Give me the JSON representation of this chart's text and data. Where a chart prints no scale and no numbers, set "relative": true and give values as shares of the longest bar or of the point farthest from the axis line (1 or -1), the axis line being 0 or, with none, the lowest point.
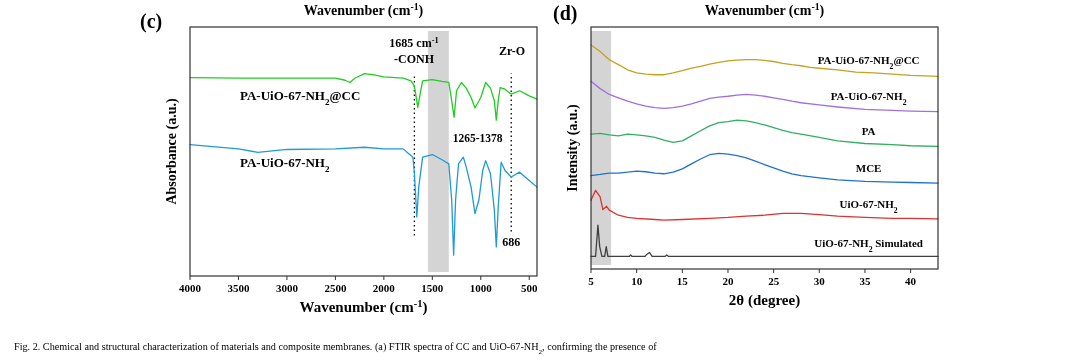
{
  "chart_data": [
    {
      "type": "line",
      "relative": true,
      "title": "Wavenumber (cm$^{-1}$)",
      "xlabel": "Wavenumber (cm$^{-1}$)",
      "ylabel": "Absorbance (a.u.)",
      "grid": false,
      "xlim": [
        4000,
        420
      ],
      "xticks": [
        4000,
        3500,
        3000,
        2500,
        2000,
        1500,
        1000,
        500
      ],
      "ref_lines": [
        {
          "axis": "x",
          "value": 1685,
          "line_style": "dotted",
          "color": "#000000"
        },
        {
          "axis": "x",
          "value": 686,
          "line_style": "dotted",
          "color": "#000000",
          "label": "686"
        }
      ],
      "bands": [
        {
          "axis": "x",
          "from": 1545,
          "to": 1330,
          "color": "#d4d4d4",
          "label": "1265-1378"
        }
      ],
      "annotations": [
        "(c)",
        "1685 cm$^{-1}$",
        "-CONH",
        "Zr-O",
        "Fig. 2. Chemical and structural characterization of materials and composite membranes. (a) FTIR spectra of CC and UiO-67-NH$_{2}$, confirming the presence of"
      ],
      "series": [
        {
          "name": "PA-UiO-67-NH$_{2}$@CC",
          "color": "#22cc22",
          "x": [
            4000,
            3500,
            3000,
            2500,
            2400,
            2350,
            2300,
            2200,
            2100,
            2000,
            1800,
            1720,
            1685,
            1650,
            1620,
            1600,
            1500,
            1400,
            1330,
            1300,
            1275,
            1250,
            1200,
            1150,
            1100,
            1060,
            1000,
            950,
            900,
            860,
            840,
            820,
            800,
            750,
            686,
            600,
            500,
            420
          ],
          "values": [
            0.98,
            0.977,
            0.977,
            0.977,
            0.967,
            0.956,
            0.977,
            1.0,
            0.993,
            0.984,
            0.977,
            0.964,
            0.939,
            0.833,
            0.915,
            0.964,
            0.97,
            0.961,
            0.956,
            0.866,
            0.784,
            0.915,
            0.956,
            0.928,
            0.882,
            0.83,
            0.882,
            0.956,
            0.928,
            0.866,
            0.77,
            0.866,
            0.931,
            0.923,
            0.898,
            0.915,
            0.89,
            0.874
          ]
        },
        {
          "name": "PA-UiO-67-NH$_{2}$",
          "color": "#1e9ad6",
          "x": [
            4000,
            3500,
            3300,
            3000,
            2500,
            2200,
            2000,
            1800,
            1740,
            1700,
            1685,
            1660,
            1640,
            1600,
            1500,
            1400,
            1330,
            1300,
            1280,
            1260,
            1230,
            1180,
            1150,
            1100,
            1060,
            1020,
            980,
            950,
            900,
            860,
            840,
            820,
            790,
            750,
            686,
            600,
            500,
            420
          ],
          "values": [
            0.649,
            0.628,
            0.611,
            0.625,
            0.628,
            0.636,
            0.628,
            0.628,
            0.603,
            0.587,
            0.505,
            0.292,
            0.439,
            0.587,
            0.6,
            0.574,
            0.554,
            0.374,
            0.103,
            0.374,
            0.554,
            0.587,
            0.538,
            0.439,
            0.308,
            0.374,
            0.521,
            0.57,
            0.505,
            0.325,
            0.144,
            0.341,
            0.562,
            0.521,
            0.489,
            0.513,
            0.472,
            0.439
          ]
        }
      ]
    },
    {
      "type": "line",
      "relative": true,
      "title": "Wavenumber (cm$^{-1}$)",
      "xlabel": "2θ (degree)",
      "ylabel": "Intensity (a.u.)",
      "grid": false,
      "xlim": [
        5,
        43
      ],
      "xticks": [
        5,
        10,
        15,
        20,
        25,
        30,
        35,
        40
      ],
      "bands": [
        {
          "axis": "x",
          "from": 5,
          "to": 7.2,
          "color": "#d4d4d4"
        }
      ],
      "annotations": [
        "(d)"
      ],
      "series": [
        {
          "name": "PA-UiO-67-NH$_{2}$@CC",
          "color": "#c8a020",
          "x": [
            5,
            6,
            7,
            8,
            9,
            10,
            11,
            12,
            13,
            14,
            15,
            16,
            17,
            18,
            19,
            20,
            21,
            22,
            23,
            24,
            25,
            26,
            27,
            28,
            29,
            30,
            32,
            34,
            36,
            38,
            40,
            43
          ],
          "values": [
            1,
            0.971,
            0.934,
            0.912,
            0.889,
            0.875,
            0.87,
            0.867,
            0.867,
            0.875,
            0.885,
            0.896,
            0.904,
            0.914,
            0.922,
            0.929,
            0.932,
            0.934,
            0.934,
            0.931,
            0.926,
            0.918,
            0.912,
            0.907,
            0.9,
            0.896,
            0.889,
            0.879,
            0.875,
            0.87,
            0.864,
            0.86
          ]
        },
        {
          "name": "PA-UiO-67-NH$_{2}$",
          "color": "#a070e0",
          "x": [
            5,
            6,
            7,
            8,
            9,
            10,
            11,
            12,
            13,
            14,
            15,
            16,
            17,
            18,
            19,
            20,
            21,
            22,
            23,
            24,
            25,
            26,
            27,
            28,
            30,
            32,
            35,
            38,
            40,
            43
          ],
          "values": [
            0.838,
            0.805,
            0.779,
            0.764,
            0.749,
            0.737,
            0.727,
            0.72,
            0.717,
            0.72,
            0.727,
            0.737,
            0.749,
            0.761,
            0.767,
            0.771,
            0.776,
            0.779,
            0.776,
            0.771,
            0.764,
            0.757,
            0.749,
            0.742,
            0.732,
            0.723,
            0.712,
            0.708,
            0.705,
            0.702
          ]
        },
        {
          "name": "PA",
          "color": "#30b060",
          "x": [
            5,
            6,
            7,
            8,
            9,
            10,
            11,
            12,
            13,
            14,
            15,
            16,
            17,
            18,
            19,
            20,
            21,
            22,
            23,
            24,
            25,
            26,
            27,
            28,
            30,
            32,
            35,
            38,
            40,
            43
          ],
          "values": [
            0.602,
            0.605,
            0.599,
            0.594,
            0.602,
            0.599,
            0.594,
            0.587,
            0.575,
            0.565,
            0.572,
            0.594,
            0.617,
            0.639,
            0.653,
            0.658,
            0.664,
            0.661,
            0.653,
            0.643,
            0.631,
            0.619,
            0.609,
            0.602,
            0.587,
            0.572,
            0.56,
            0.555,
            0.55,
            0.547
          ]
        },
        {
          "name": "MCE",
          "color": "#2070d0",
          "x": [
            5,
            6,
            7,
            8,
            9,
            10,
            11,
            12,
            13,
            14,
            15,
            16,
            17,
            18,
            19,
            20,
            21,
            22,
            23,
            24,
            25,
            26,
            27,
            28,
            30,
            32,
            35,
            38,
            40,
            43
          ],
          "values": [
            0.417,
            0.422,
            0.428,
            0.428,
            0.432,
            0.437,
            0.434,
            0.428,
            0.425,
            0.432,
            0.447,
            0.469,
            0.491,
            0.51,
            0.516,
            0.513,
            0.506,
            0.496,
            0.481,
            0.466,
            0.451,
            0.437,
            0.425,
            0.417,
            0.407,
            0.398,
            0.391,
            0.388,
            0.386,
            0.383
          ]
        },
        {
          "name": "UiO-67-NH$_{2}$",
          "color": "#e03030",
          "x": [
            5,
            5.5,
            6,
            6.3,
            6.7,
            7,
            8,
            9,
            10,
            12,
            13,
            15,
            18,
            20,
            22,
            24,
            26,
            28,
            30,
            32,
            35,
            38,
            40,
            43
          ],
          "values": [
            0.307,
            0.351,
            0.322,
            0.265,
            0.28,
            0.263,
            0.24,
            0.23,
            0.226,
            0.221,
            0.218,
            0.221,
            0.226,
            0.23,
            0.236,
            0.24,
            0.248,
            0.248,
            0.243,
            0.236,
            0.23,
            0.226,
            0.226,
            0.224
          ]
        },
        {
          "name": "UiO-67-NH$_{2}$ Simulated",
          "color": "#404040",
          "x": [
            5,
            5.5,
            5.76,
            5.95,
            6.2,
            6.5,
            6.67,
            6.85,
            9.2,
            9.35,
            9.5,
            10.9,
            11.1,
            11.4,
            11.7,
            13.1,
            13.3,
            13.5,
            43
          ],
          "values": [
            0.056,
            0.056,
            0.196,
            0.1,
            0.056,
            0.056,
            0.1,
            0.056,
            0.056,
            0.063,
            0.056,
            0.056,
            0.065,
            0.074,
            0.056,
            0.056,
            0.063,
            0.056,
            0.056
          ]
        }
      ]
    }
  ]
}
